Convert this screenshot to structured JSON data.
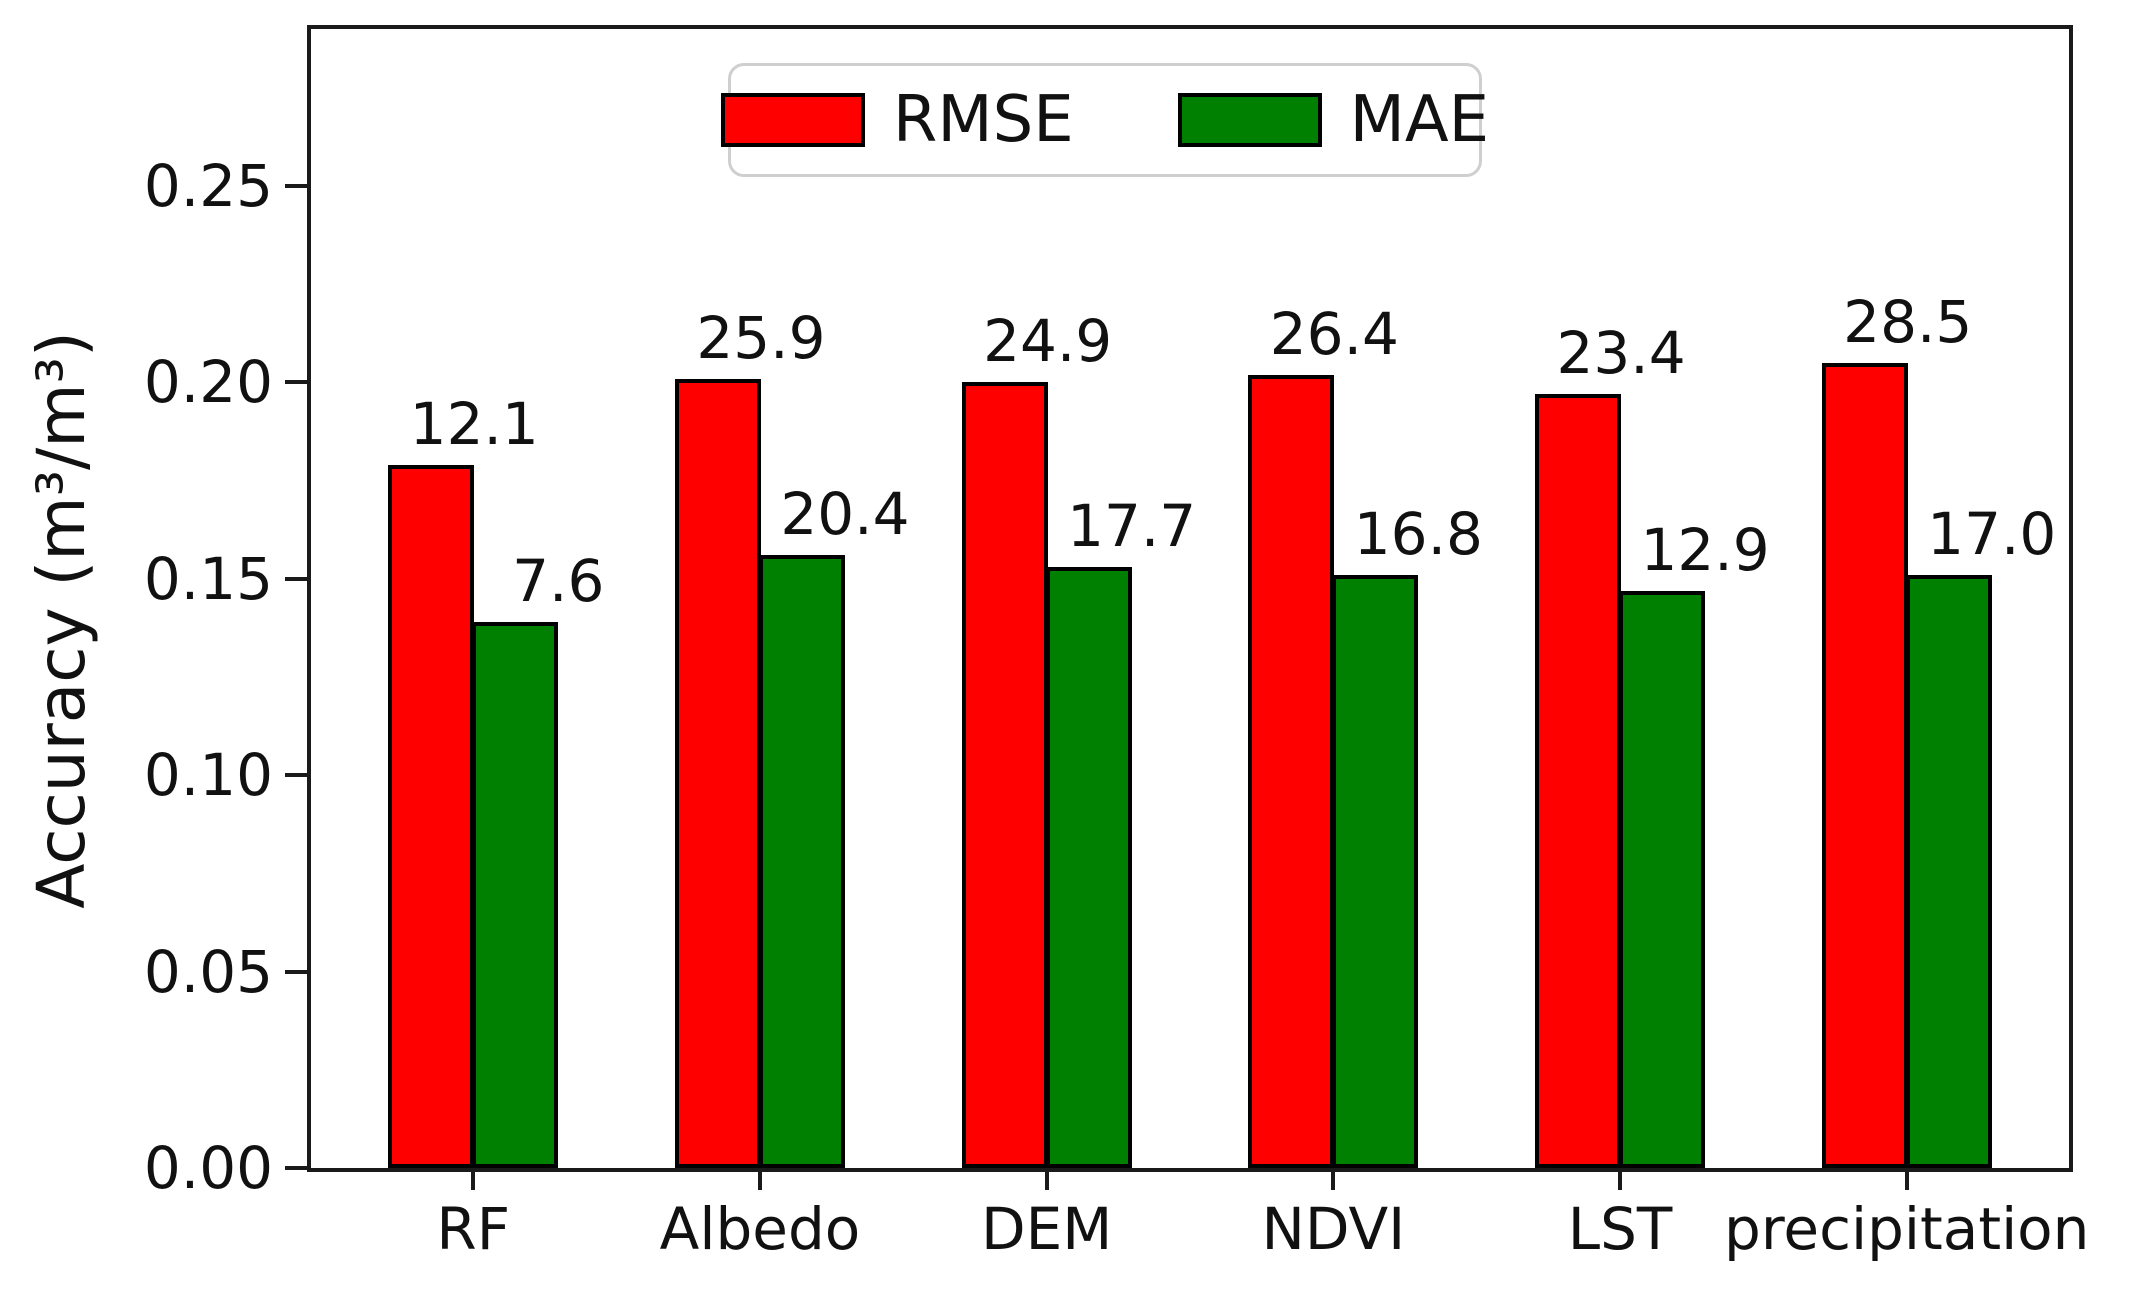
{
  "chart_data": {
    "type": "bar",
    "title": "",
    "xlabel": "",
    "ylabel": "Accuracy (m³/m³)",
    "ylim": [
      0,
      0.29
    ],
    "yticks": [
      0.0,
      0.05,
      0.1,
      0.15,
      0.2,
      0.25
    ],
    "ytick_labels": [
      "0.00",
      "0.05",
      "0.10",
      "0.15",
      "0.20",
      "0.25"
    ],
    "categories": [
      "RF",
      "Albedo",
      "DEM",
      "NDVI",
      "LST",
      "precipitation"
    ],
    "grid": false,
    "legend_position": "top-center",
    "bar_edge_color": "#000000",
    "series": [
      {
        "name": "RMSE",
        "color": "#ff0000",
        "values": [
          0.179,
          0.201,
          0.2,
          0.202,
          0.197,
          0.205
        ],
        "labels": [
          "12.1",
          "25.9",
          "24.9",
          "26.4",
          "23.4",
          "28.5"
        ]
      },
      {
        "name": "MAE",
        "color": "#008000",
        "values": [
          0.139,
          0.156,
          0.153,
          0.151,
          0.147,
          0.151
        ],
        "labels": [
          "7.6",
          "20.4",
          "17.7",
          "16.8",
          "12.9",
          "17.0"
        ]
      }
    ]
  }
}
